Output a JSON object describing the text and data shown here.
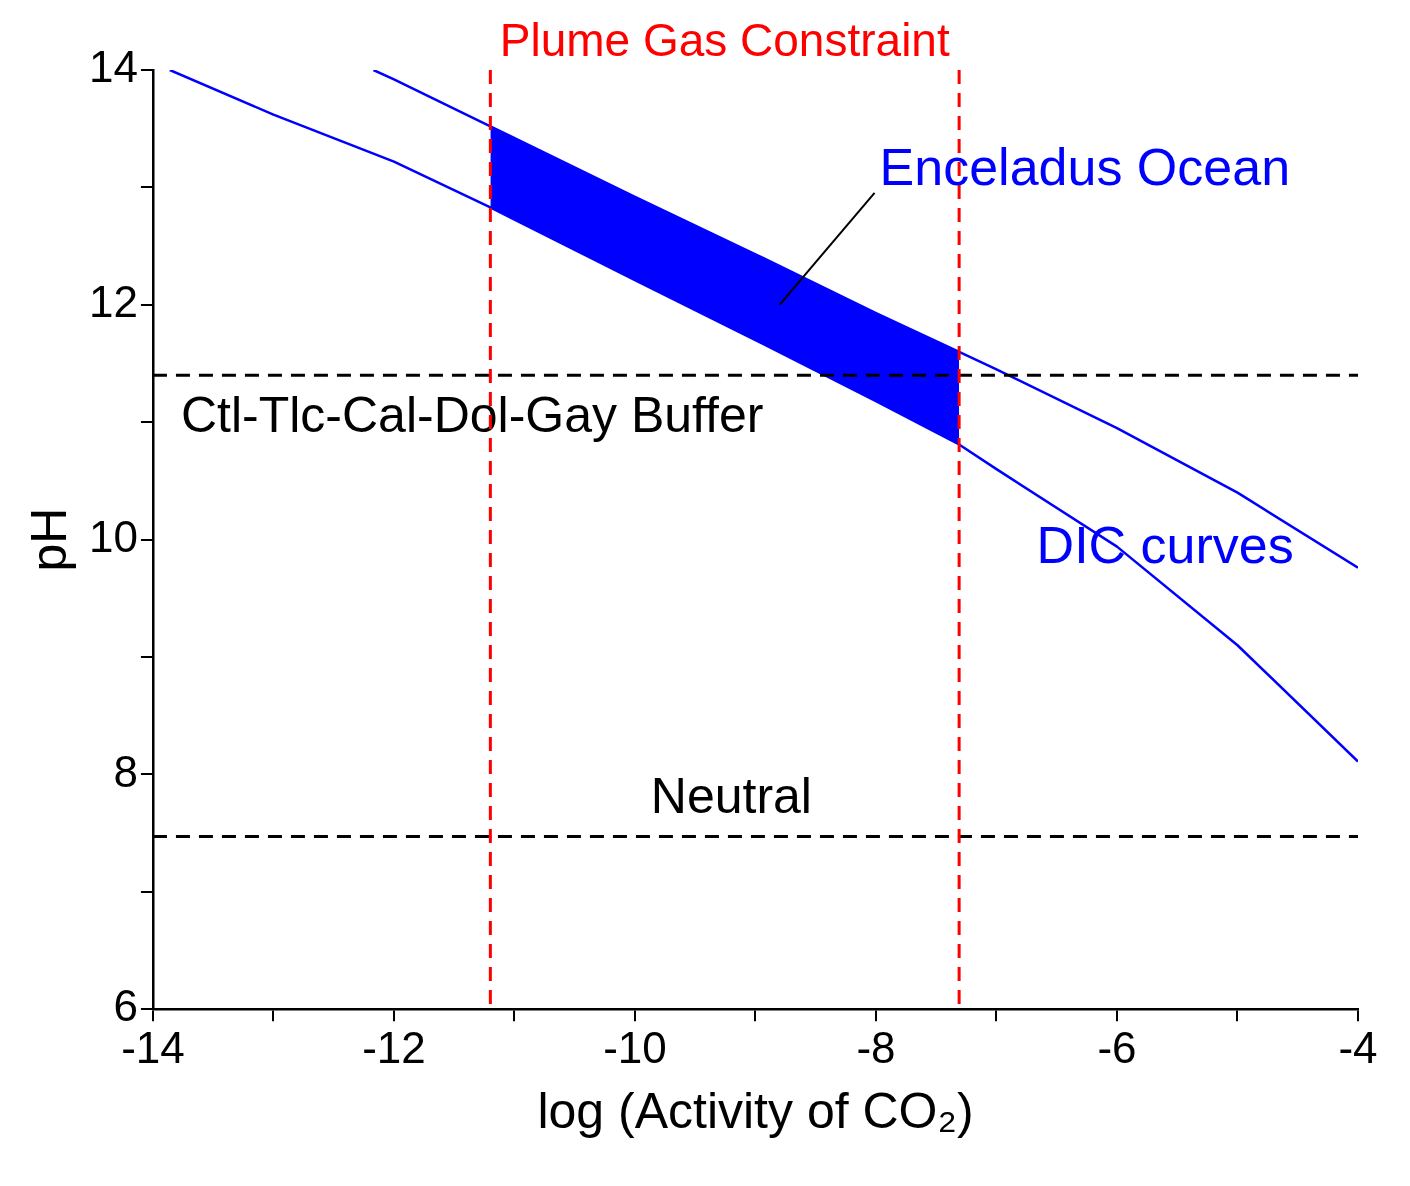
{
  "chart_data": {
    "type": "line",
    "xlabel": "log (Activity of CO₂)",
    "ylabel": "pH",
    "xlim": [
      -14,
      -4
    ],
    "ylim": [
      6,
      14
    ],
    "xticks": [
      -14,
      {
        "value": -13,
        "label": null
      },
      -12,
      {
        "value": -11,
        "label": null
      },
      -10,
      {
        "value": -9,
        "label": null
      },
      -8,
      {
        "value": -7,
        "label": null
      },
      -6,
      {
        "value": -5,
        "label": null
      },
      -4
    ],
    "yticks": [
      6,
      {
        "value": 7,
        "label": null
      },
      8,
      {
        "value": 9,
        "label": null
      },
      10,
      {
        "value": 11,
        "label": null
      },
      12,
      {
        "value": 13,
        "label": null
      },
      14
    ],
    "grid": false,
    "legend": false,
    "marker": "none",
    "line_style": "solid",
    "series": [
      {
        "color": "#0000ff",
        "x": [
          -12.17,
          -12,
          -11.2,
          -10,
          -9,
          -8,
          -7.31,
          -7,
          -6,
          -5,
          -4
        ],
        "values": [
          14,
          13.92,
          13.52,
          12.92,
          12.43,
          11.93,
          11.6,
          11.45,
          10.95,
          10.4,
          9.76
        ]
      },
      {
        "color": "#0000ff",
        "x": [
          -13.86,
          -13,
          -12,
          -11.2,
          -10,
          -9,
          -8,
          -7.31,
          -7,
          -6,
          -5,
          -4
        ],
        "values": [
          14,
          13.62,
          13.22,
          12.83,
          12.21,
          11.7,
          11.18,
          10.81,
          10.6,
          9.94,
          9.1,
          8.11
        ],
        "lower": [
          null,
          null,
          null,
          12.83,
          12.21,
          11.7,
          11.18,
          10.81,
          null,
          null,
          null,
          null
        ],
        "upper": [
          null,
          null,
          null,
          13.52,
          12.92,
          12.43,
          11.93,
          11.6,
          null,
          null,
          null,
          null
        ]
      }
    ],
    "ref_lines": [
      {
        "axis": "y",
        "value": 11.4,
        "label": "Ctl-Tlc-Cal-Dol-Gay Buffer",
        "color": "#000000",
        "line_style": "dashed"
      },
      {
        "axis": "y",
        "value": 7.47,
        "label": "Neutral",
        "color": "#000000",
        "line_style": "dashed"
      },
      {
        "axis": "x",
        "value": -11.2,
        "color": "#ff0000",
        "line_style": "dashed"
      },
      {
        "axis": "x",
        "value": -7.31,
        "color": "#ff0000",
        "line_style": "dashed"
      }
    ],
    "annotations": [
      "Plume Gas Constraint",
      "Enceladus Ocean",
      "DIC curves"
    ]
  }
}
